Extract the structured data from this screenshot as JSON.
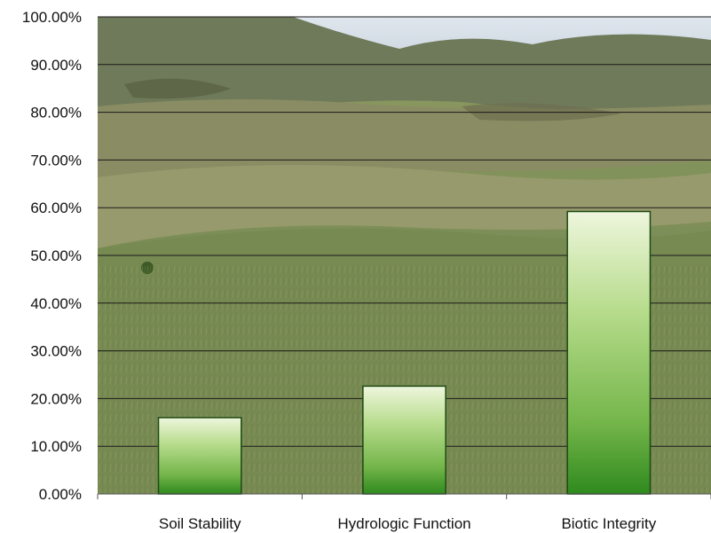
{
  "chart_data": {
    "type": "bar",
    "categories": [
      "Soil Stability",
      "Hydrologic Function",
      "Biotic Integrity"
    ],
    "values": [
      16.0,
      22.6,
      59.2
    ],
    "ylim": [
      0,
      100
    ],
    "y_ticks": [
      "0.00%",
      "10.00%",
      "20.00%",
      "30.00%",
      "40.00%",
      "50.00%",
      "60.00%",
      "70.00%",
      "80.00%",
      "90.00%",
      "100.00%"
    ],
    "grid": true,
    "legend": "none",
    "background": "photograph of green grassy hillside under a pale sky",
    "colors": {
      "bar_light": "#e6f2cf",
      "bar_mid": "#8cc45a",
      "bar_dark": "#2f8a1e",
      "bar_edge": "#1e4a14",
      "grid": "#1a1a1a"
    }
  }
}
